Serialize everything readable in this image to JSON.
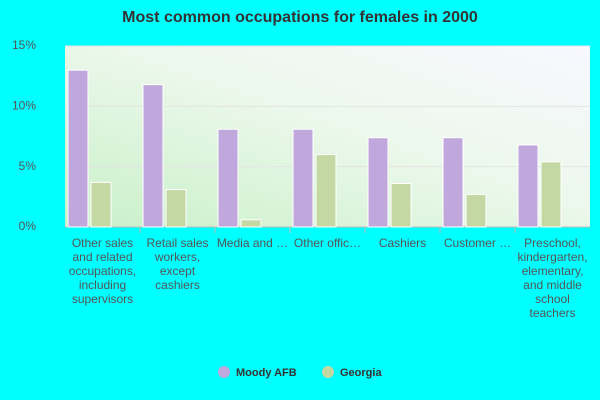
{
  "chart_data": {
    "type": "bar",
    "title": "Most common occupations for females in 2000",
    "categories": [
      "Other sales and related occupations, including supervisors",
      "Retail sales workers, except cashiers",
      "Media and …",
      "Other offic…",
      "Cashiers",
      "Customer …",
      "Preschool, kindergarten, elementary, and middle school teachers"
    ],
    "series": [
      {
        "name": "Moody AFB",
        "color": "#c0a8dc",
        "values": [
          13.0,
          11.8,
          8.1,
          8.1,
          7.4,
          7.4,
          6.8
        ]
      },
      {
        "name": "Georgia",
        "color": "#c4d8a4",
        "values": [
          3.7,
          3.1,
          0.6,
          6.0,
          3.6,
          2.7,
          5.4
        ]
      }
    ],
    "ylim": [
      0,
      15
    ],
    "yticks": [
      {
        "value": 0,
        "label": "0%"
      },
      {
        "value": 5,
        "label": "5%"
      },
      {
        "value": 10,
        "label": "10%"
      },
      {
        "value": 15,
        "label": "15%"
      }
    ],
    "grid": true
  }
}
